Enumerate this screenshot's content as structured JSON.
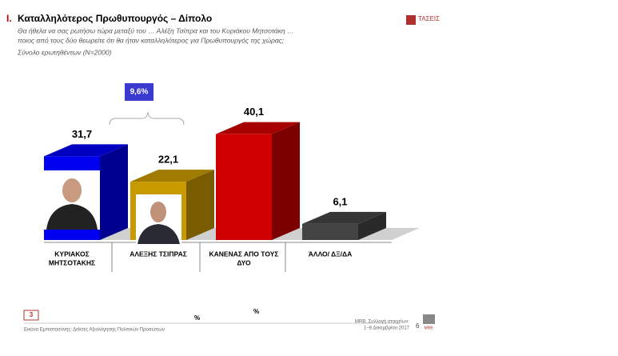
{
  "chart_data": {
    "type": "bar3d",
    "title_number": "I.",
    "title": "Καταλληλότερος Πρωθυπουργός – Δίπολο",
    "subtitle": [
      "Θα ήθελα να σας ρωτήσω τώρα μεταξύ του … Αλέξη Τσίπρα και του Κυριάκου Μητσοτάκη …",
      "ποιος από τους δύο θεωρείτε ότι θα ήταν καταλληλότερος για Πρωθυπουργός της χώρας;"
    ],
    "base_note": "Σύνολο ερωτηθέντων (N=2000)",
    "logo": "ΤΑΣΕΙΣ",
    "annotation": "9,6%",
    "categories": [
      [
        "ΚΥΡΙΑΚΟΣ",
        "ΜΗΤΣΟΤΑΚΗΣ"
      ],
      [
        "ΑΛΕΞΗΣ ΤΣΙΠΡΑΣ"
      ],
      [
        "ΚΑΝΕΝΑΣ ΑΠΟ ΤΟΥΣ",
        "ΔΥΟ"
      ],
      [
        "ΆΛΛΟ/ ΔΞ/ΔΑ"
      ]
    ],
    "values": [
      31.7,
      22.1,
      40.1,
      6.1
    ],
    "value_labels": [
      "31,7",
      "22,1",
      "40,1",
      "6,1"
    ],
    "colors": [
      "#0000f0",
      "#c99a00",
      "#d00000",
      "#444444"
    ],
    "footer": {
      "page_box": "3",
      "percent_1": "%",
      "percent_2": "%",
      "source": "Εικόνα Εμπιστοσύνης: Δείκτες Αξιολόγησης Πολιτικών Προσώπων",
      "credit": [
        "MRB, Συλλογή στοιχείων:",
        "1–8 Δεκεμβρίου 2017"
      ],
      "page": "6",
      "brand": "MRB"
    }
  }
}
